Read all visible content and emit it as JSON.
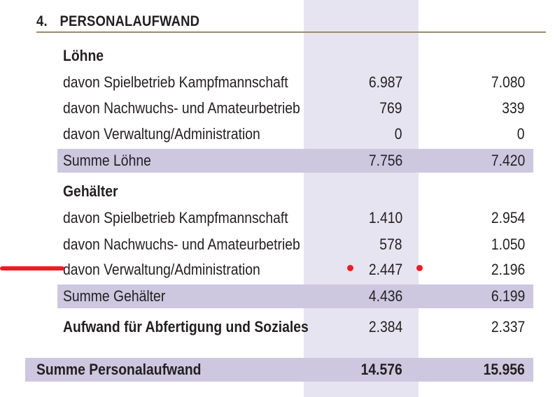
{
  "section": {
    "number": "4.",
    "title": "PERSONALAUFWAND"
  },
  "loehne": {
    "heading": "Löhne",
    "rows": [
      {
        "label": "davon Spielbetrieb Kampfmannschaft",
        "v1": "6.987",
        "v2": "7.080"
      },
      {
        "label": "davon Nachwuchs- und Amateurbetrieb",
        "v1": "769",
        "v2": "339"
      },
      {
        "label": "davon Verwaltung/Administration",
        "v1": "0",
        "v2": "0"
      }
    ],
    "sum": {
      "label": "Summe Löhne",
      "v1": "7.756",
      "v2": "7.420"
    }
  },
  "gehaelter": {
    "heading": "Gehälter",
    "rows": [
      {
        "label": "davon Spielbetrieb Kampfmannschaft",
        "v1": "1.410",
        "v2": "2.954"
      },
      {
        "label": "davon Nachwuchs- und Amateurbetrieb",
        "v1": "578",
        "v2": "1.050"
      },
      {
        "label": "davon Verwaltung/Administration",
        "v1": "2.447",
        "v2": "2.196"
      }
    ],
    "sum": {
      "label": "Summe Gehälter",
      "v1": "4.436",
      "v2": "6.199"
    }
  },
  "abfertigung": {
    "label": "Aufwand für Abfertigung und Soziales",
    "v1": "2.384",
    "v2": "2.337"
  },
  "total": {
    "label": "Summe Personalaufwand",
    "v1": "14.576",
    "v2": "15.956"
  },
  "colors": {
    "highlight_band": "#e6e4f0",
    "sum_row": "#cdc8e0",
    "rule": "#9a8c6c",
    "annotation": "#ee1c25"
  }
}
